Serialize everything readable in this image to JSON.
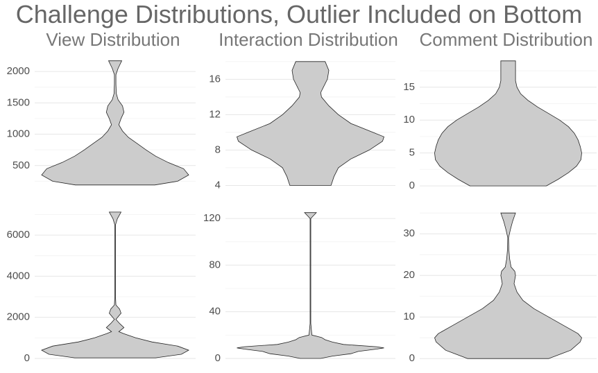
{
  "title": "Challenge Distributions, Outlier Included on Bottom",
  "chart_data": [
    {
      "type": "violin",
      "title": "View Distribution",
      "color": "#cccccc",
      "grid": true,
      "ylim": [
        155,
        2200
      ],
      "yticks": [
        500,
        1000,
        1500,
        2000
      ],
      "minor_yticks": [
        250,
        750,
        1250,
        1750
      ],
      "y": [
        190,
        250,
        350,
        450,
        550,
        650,
        750,
        850,
        950,
        1050,
        1150,
        1250,
        1350,
        1450,
        1550,
        1650,
        1800,
        1950,
        2050,
        2170
      ],
      "density": [
        0.54,
        0.85,
        1.0,
        0.93,
        0.72,
        0.55,
        0.42,
        0.3,
        0.18,
        0.1,
        0.05,
        0.08,
        0.12,
        0.1,
        0.04,
        0.015,
        0.01,
        0.01,
        0.04,
        0.09
      ]
    },
    {
      "type": "violin",
      "title": "Interaction Distribution",
      "color": "#cccccc",
      "grid": true,
      "ylim": [
        3.8,
        18.3
      ],
      "yticks": [
        4,
        8,
        12,
        16
      ],
      "minor_yticks": [
        6,
        10,
        14,
        18
      ],
      "y": [
        4,
        5,
        6,
        7,
        8,
        9,
        9.5,
        10,
        11,
        12,
        13,
        14,
        14.5,
        15,
        16,
        17,
        18
      ],
      "density": [
        0.28,
        0.32,
        0.38,
        0.55,
        0.8,
        0.98,
        1.0,
        0.85,
        0.55,
        0.38,
        0.25,
        0.15,
        0.14,
        0.17,
        0.23,
        0.25,
        0.2
      ]
    },
    {
      "type": "violin",
      "title": "Comment Distribution",
      "color": "#cccccc",
      "grid": true,
      "ylim": [
        -0.2,
        19.3
      ],
      "yticks": [
        0,
        5,
        10,
        15
      ],
      "minor_yticks": [
        2.5,
        7.5,
        12.5,
        17.5
      ],
      "y": [
        0,
        1,
        2,
        3,
        4,
        5,
        6,
        7,
        8,
        9,
        10,
        11,
        12,
        13,
        14,
        15,
        16,
        17,
        19
      ],
      "density": [
        0.52,
        0.68,
        0.82,
        0.93,
        0.99,
        1.0,
        0.98,
        0.95,
        0.9,
        0.82,
        0.7,
        0.55,
        0.4,
        0.27,
        0.17,
        0.12,
        0.1,
        0.1,
        0.1
      ]
    },
    {
      "type": "violin",
      "color": "#cccccc",
      "grid": true,
      "ylim": [
        -170,
        7320
      ],
      "yticks": [
        0,
        2000,
        4000,
        6000
      ],
      "minor_yticks": [
        1000,
        3000,
        5000,
        7000
      ],
      "y": [
        30,
        200,
        400,
        600,
        800,
        1000,
        1200,
        1300,
        1500,
        1700,
        1900,
        2200,
        2400,
        2600,
        3000,
        6500,
        6800,
        7120
      ],
      "density": [
        0.55,
        0.9,
        1.0,
        0.85,
        0.5,
        0.28,
        0.12,
        0.05,
        0.12,
        0.06,
        0.01,
        0.08,
        0.06,
        0.01,
        0.005,
        0.005,
        0.03,
        0.08
      ]
    },
    {
      "type": "violin",
      "color": "#cccccc",
      "grid": true,
      "ylim": [
        -3,
        129
      ],
      "yticks": [
        0,
        40,
        80,
        120
      ],
      "minor_yticks": [
        20,
        60,
        100
      ],
      "y": [
        0,
        2,
        4,
        6,
        8,
        9,
        10,
        12,
        14,
        16,
        18,
        20,
        30,
        120,
        125
      ],
      "density": [
        0.14,
        0.3,
        0.55,
        0.65,
        0.9,
        1.0,
        0.9,
        0.45,
        0.3,
        0.2,
        0.15,
        0.02,
        0.005,
        0.005,
        0.08
      ]
    },
    {
      "type": "violin",
      "color": "#cccccc",
      "grid": true,
      "ylim": [
        -0.8,
        36.2
      ],
      "yticks": [
        0,
        10,
        20,
        30
      ],
      "minor_yticks": [
        5,
        15,
        25,
        35
      ],
      "y": [
        0,
        2,
        4,
        5,
        6,
        8,
        10,
        12,
        14,
        16,
        18,
        20,
        21,
        22,
        24,
        26,
        29,
        31,
        33,
        35
      ],
      "density": [
        0.55,
        0.85,
        0.98,
        1.0,
        0.95,
        0.75,
        0.55,
        0.35,
        0.2,
        0.12,
        0.08,
        0.1,
        0.09,
        0.04,
        0.02,
        0.01,
        0.005,
        0.03,
        0.06,
        0.1
      ]
    }
  ]
}
